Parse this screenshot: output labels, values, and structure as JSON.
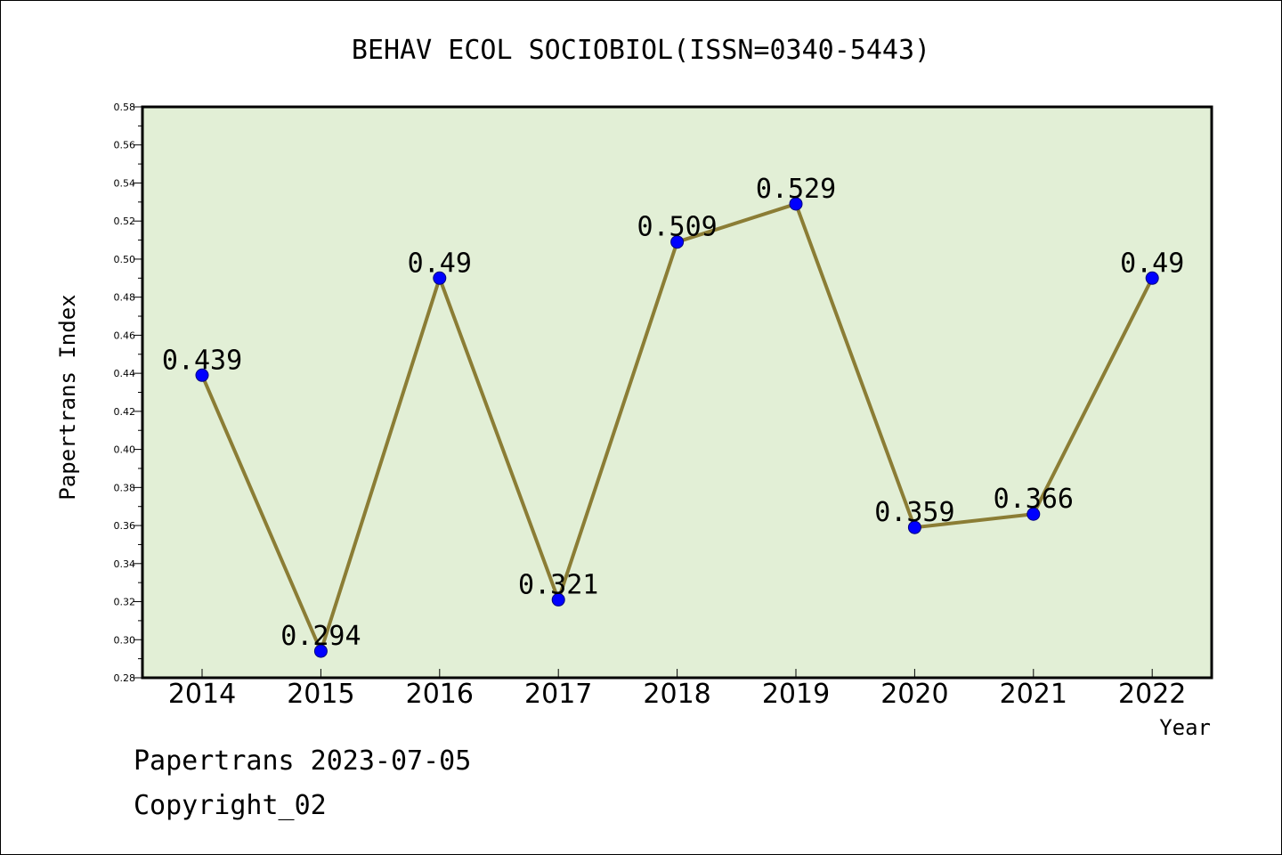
{
  "chart_data": {
    "type": "line",
    "title": "BEHAV ECOL SOCIOBIOL(ISSN=0340-5443)",
    "xlabel": "Year",
    "ylabel": "Papertrans Index",
    "categories": [
      "2014",
      "2015",
      "2016",
      "2017",
      "2018",
      "2019",
      "2020",
      "2021",
      "2022"
    ],
    "series": [
      {
        "values": [
          0.439,
          0.294,
          0.49,
          0.321,
          0.509,
          0.529,
          0.359,
          0.366,
          0.49
        ],
        "data_labels": [
          "0.439",
          "0.294",
          "0.49",
          "0.321",
          "0.509",
          "0.529",
          "0.359",
          "0.366",
          "0.49"
        ]
      }
    ],
    "ylim": [
      0.28,
      0.58
    ],
    "yticks": [
      "0.28",
      "0.30",
      "0.32",
      "0.34",
      "0.36",
      "0.38",
      "0.40",
      "0.42",
      "0.44",
      "0.46",
      "0.48",
      "0.50",
      "0.52",
      "0.54",
      "0.56",
      "0.58"
    ],
    "grid": false,
    "legend": "none",
    "colors": {
      "plot_background": "#e2efd6",
      "line": "#8b7d35",
      "marker": "#0000ff",
      "marker_edge": "#000080"
    }
  },
  "footer": {
    "line1": "Papertrans 2023-07-05",
    "line2": "Copyright_02"
  }
}
